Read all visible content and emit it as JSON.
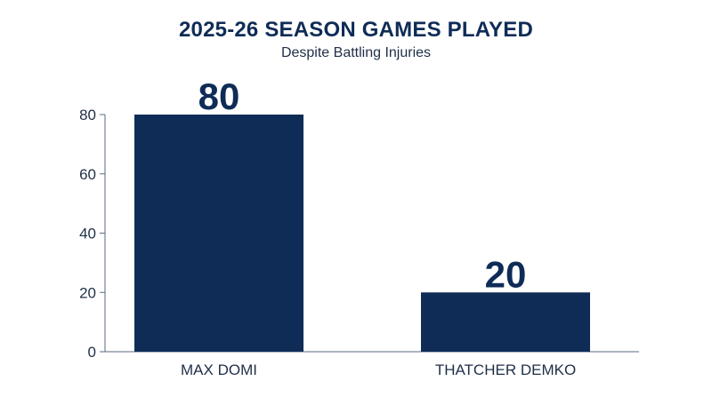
{
  "chart_data": {
    "type": "bar",
    "title": "2025-26 SEASON GAMES PLAYED",
    "subtitle": "Despite Battling Injuries",
    "categories": [
      "MAX DOMI",
      "THATCHER DEMKO"
    ],
    "values": [
      80,
      20
    ],
    "data_labels": [
      "80",
      "20"
    ],
    "ylim": [
      0,
      80
    ],
    "yticks": [
      0,
      20,
      40,
      60,
      80
    ],
    "xlabel": "",
    "ylabel": "",
    "grid": false,
    "legend": "none",
    "bar_color": "#0f2c57"
  },
  "colors": {
    "title": "#0f2c57",
    "text": "#1f2f47",
    "axis": "#5c6a80",
    "bar": "#0f2c57"
  }
}
